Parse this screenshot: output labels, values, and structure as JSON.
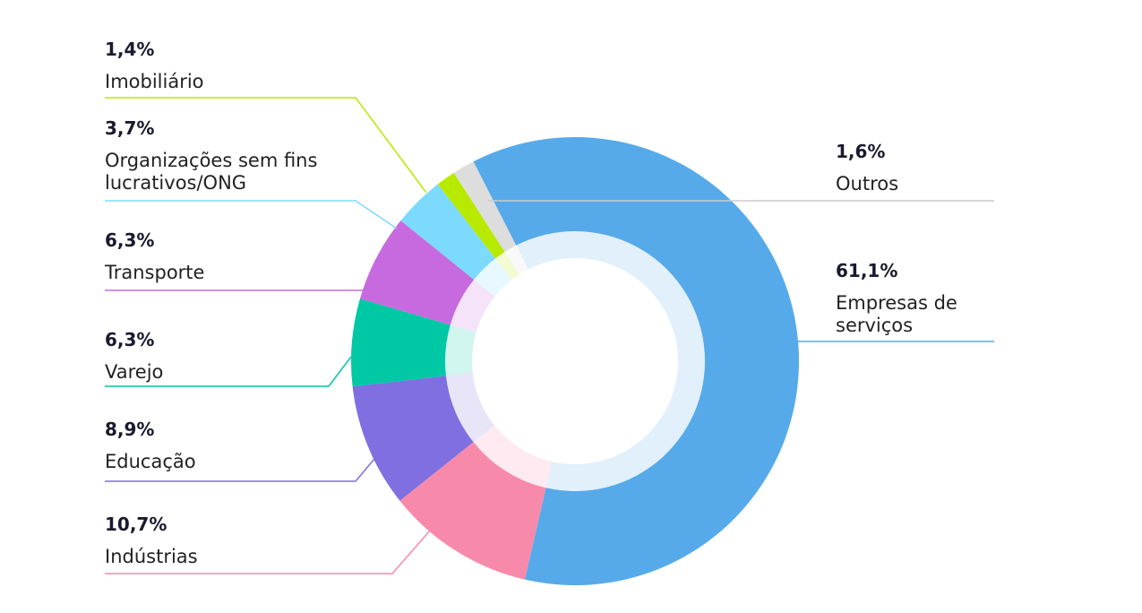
{
  "chart_data": {
    "type": "pie",
    "donut": true,
    "categories": [
      "Empresas de serviços",
      "Indústrias",
      "Educação",
      "Varejo",
      "Transporte",
      "Organizações sem fins lucrativos/ONG",
      "Imobiliário",
      "Outros"
    ],
    "values": [
      61.1,
      10.7,
      8.9,
      6.3,
      6.3,
      3.7,
      1.4,
      1.6
    ],
    "value_labels": [
      "61,1%",
      "10,7%",
      "8,9%",
      "6,3%",
      "6,3%",
      "3,7%",
      "1,4%",
      "1,6%"
    ],
    "colors": [
      "#56aaea",
      "#f78aab",
      "#7f6fe0",
      "#00c8a5",
      "#c76ae0",
      "#7ddaff",
      "#b8ea00",
      "#dddddd"
    ]
  }
}
